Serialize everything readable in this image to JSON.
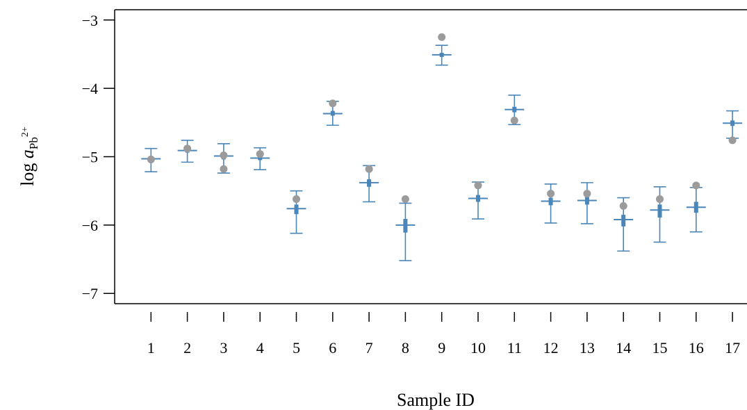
{
  "chart_data": {
    "type": "scatter",
    "xlabel": "Sample ID",
    "ylabel": {
      "prefix": "log ",
      "symbol": "a",
      "subscript_base": "Pb",
      "superscript": "2+"
    },
    "ylim": [
      -7.15,
      -2.85
    ],
    "xlim": [
      0.0,
      17.4
    ],
    "y_ticks": [
      "−3",
      "−4",
      "−5",
      "−6",
      "−7"
    ],
    "y_tick_values": [
      -3,
      -4,
      -5,
      -6,
      -7
    ],
    "x_ticks": [
      "1",
      "2",
      "3",
      "4",
      "5",
      "6",
      "7",
      "8",
      "9",
      "10",
      "11",
      "12",
      "13",
      "14",
      "15",
      "16",
      "17"
    ],
    "series": [
      {
        "marker": "error-bar",
        "samples": [
          {
            "id": 1,
            "median": -5.03,
            "q1": -5.06,
            "q3": -5.0,
            "low": -5.22,
            "high": -4.88
          },
          {
            "id": 2,
            "median": -4.91,
            "q1": -4.94,
            "q3": -4.88,
            "low": -5.08,
            "high": -4.76
          },
          {
            "id": 3,
            "median": -4.99,
            "q1": -5.04,
            "q3": -4.94,
            "low": -5.24,
            "high": -4.81
          },
          {
            "id": 4,
            "median": -5.02,
            "q1": -5.05,
            "q3": -4.99,
            "low": -5.19,
            "high": -4.87
          },
          {
            "id": 5,
            "median": -5.76,
            "q1": -5.84,
            "q3": -5.7,
            "low": -6.12,
            "high": -5.5
          },
          {
            "id": 6,
            "median": -4.37,
            "q1": -4.4,
            "q3": -4.33,
            "low": -4.54,
            "high": -4.19
          },
          {
            "id": 7,
            "median": -5.38,
            "q1": -5.44,
            "q3": -5.33,
            "low": -5.66,
            "high": -5.13
          },
          {
            "id": 8,
            "median": -6.0,
            "q1": -6.11,
            "q3": -5.91,
            "low": -6.52,
            "high": -5.68
          },
          {
            "id": 9,
            "median": -3.51,
            "q1": -3.54,
            "q3": -3.48,
            "low": -3.66,
            "high": -3.37
          },
          {
            "id": 10,
            "median": -5.61,
            "q1": -5.66,
            "q3": -5.56,
            "low": -5.91,
            "high": -5.37
          },
          {
            "id": 11,
            "median": -4.31,
            "q1": -4.35,
            "q3": -4.27,
            "low": -4.53,
            "high": -4.1
          },
          {
            "id": 12,
            "median": -5.65,
            "q1": -5.71,
            "q3": -5.6,
            "low": -5.97,
            "high": -5.4
          },
          {
            "id": 13,
            "median": -5.64,
            "q1": -5.7,
            "q3": -5.59,
            "low": -5.98,
            "high": -5.38
          },
          {
            "id": 14,
            "median": -5.92,
            "q1": -6.02,
            "q3": -5.85,
            "low": -6.38,
            "high": -5.6
          },
          {
            "id": 15,
            "median": -5.78,
            "q1": -5.89,
            "q3": -5.7,
            "low": -6.25,
            "high": -5.44
          },
          {
            "id": 16,
            "median": -5.74,
            "q1": -5.82,
            "q3": -5.66,
            "low": -6.1,
            "high": -5.45
          },
          {
            "id": 17,
            "median": -4.51,
            "q1": -4.55,
            "q3": -4.47,
            "low": -4.73,
            "high": -4.33
          }
        ]
      },
      {
        "marker": "dot",
        "x": [
          1,
          2,
          3,
          3,
          4,
          5,
          6,
          7,
          8,
          9,
          10,
          11,
          12,
          13,
          14,
          15,
          16,
          17
        ],
        "y": [
          -5.04,
          -4.88,
          -4.98,
          -5.18,
          -4.96,
          -5.62,
          -4.22,
          -5.18,
          -5.62,
          -3.25,
          -5.42,
          -4.47,
          -5.54,
          -5.54,
          -5.72,
          -5.62,
          -5.42,
          -4.76
        ]
      }
    ],
    "colors": {
      "errorbar": "#4a86b8",
      "dot": "#9b9b9b",
      "axis": "#000000"
    },
    "grid": false
  }
}
